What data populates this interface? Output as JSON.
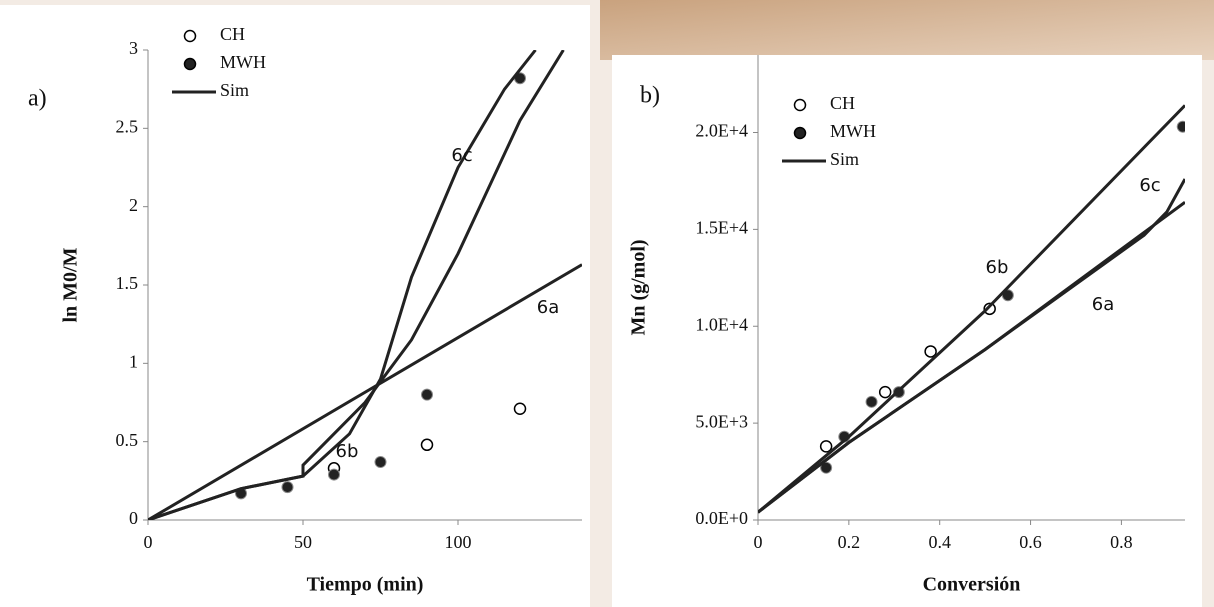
{
  "chart_data": [
    {
      "type": "scatter-line",
      "panel": "a)",
      "x_label": "Tiempo (min)",
      "y_label": "ln M0/M",
      "xlim": [
        0,
        140
      ],
      "xticks": [
        0,
        50,
        100
      ],
      "ylim": [
        0,
        3
      ],
      "yticks": [
        0,
        0.5,
        1,
        1.5,
        2,
        2.5,
        3
      ],
      "series": [
        {
          "name": "CH",
          "marker": "open",
          "color": "#000000",
          "x": [
            60,
            90,
            120
          ],
          "values": [
            0.33,
            0.48,
            0.71
          ]
        },
        {
          "name": "MWH",
          "marker": "filled",
          "color": "#000000",
          "x": [
            30,
            45,
            60,
            75,
            90,
            120
          ],
          "values": [
            0.17,
            0.21,
            0.29,
            0.37,
            0.8,
            2.82
          ]
        },
        {
          "name": "Sim",
          "marker": "line",
          "color": "#222222",
          "curves": [
            {
              "label": "6a",
              "x": [
                0,
                140
              ],
              "values": [
                0,
                1.63
              ]
            },
            {
              "label": "6b",
              "x": [
                0,
                30,
                50,
                50,
                70,
                85,
                100,
                120,
                134
              ],
              "values": [
                0,
                0.2,
                0.28,
                0.35,
                0.75,
                1.15,
                1.7,
                2.55,
                3
              ]
            },
            {
              "label": "6c",
              "x": [
                0,
                30,
                50,
                65,
                75,
                85,
                100,
                115,
                125
              ],
              "values": [
                0,
                0.2,
                0.28,
                0.55,
                0.9,
                1.55,
                2.25,
                2.75,
                3
              ]
            }
          ]
        }
      ]
    },
    {
      "type": "scatter-line",
      "panel": "b)",
      "x_label": "Conversión",
      "y_label": "Mn (g/mol)",
      "xlim": [
        0,
        0.94
      ],
      "xticks": [
        0,
        0.2,
        0.4,
        0.6,
        0.8
      ],
      "ylim": [
        0,
        24000
      ],
      "yticks": [
        {
          "value": 0,
          "label": "0.0E+0"
        },
        {
          "value": 5000,
          "label": "5.0E+3"
        },
        {
          "value": 10000,
          "label": "1.0E+4"
        },
        {
          "value": 15000,
          "label": "1.5E+4"
        },
        {
          "value": 20000,
          "label": "2.0E+4"
        }
      ],
      "series": [
        {
          "name": "CH",
          "marker": "open",
          "color": "#000000",
          "x": [
            0.15,
            0.28,
            0.38,
            0.51
          ],
          "values": [
            3800,
            6600,
            8700,
            10900
          ]
        },
        {
          "name": "MWH",
          "marker": "filled",
          "color": "#000000",
          "x": [
            0.15,
            0.19,
            0.25,
            0.31,
            0.55,
            0.935
          ],
          "values": [
            2700,
            4300,
            6100,
            6600,
            11600,
            20300
          ]
        },
        {
          "name": "Sim",
          "marker": "line",
          "color": "#222222",
          "curves": [
            {
              "label": "6a",
              "x": [
                0,
                0.2,
                0.5,
                0.94
              ],
              "values": [
                400,
                4000,
                8800,
                16400
              ]
            },
            {
              "label": "6b",
              "x": [
                0,
                0.2,
                0.5,
                0.94
              ],
              "values": [
                400,
                4300,
                10800,
                21400
              ]
            },
            {
              "label": "6c",
              "x": [
                0,
                0.2,
                0.5,
                0.85,
                0.9,
                0.94
              ],
              "values": [
                400,
                4000,
                8800,
                14700,
                15900,
                17600
              ]
            }
          ]
        }
      ]
    }
  ]
}
